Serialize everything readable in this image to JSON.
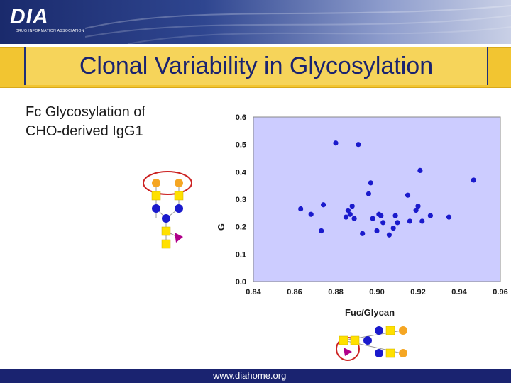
{
  "header": {
    "logo_text": "DIA",
    "logo_subtext": "DRUG INFORMATION ASSOCIATION"
  },
  "title": "Clonal Variability in Glycosylation",
  "subtitle": {
    "line1": "Fc Glycosylation of",
    "line2": "CHO-derived IgG1"
  },
  "footer": {
    "url": "www.diahome.org"
  },
  "colors": {
    "plot_bg": "#ccccff",
    "point": "#1a1acc",
    "title_bg": "#f6d45a",
    "title_text": "#1a2370",
    "galactose": "#f5a623",
    "glcnac": "#ffe000",
    "mannose": "#1a1acc",
    "fucose": "#b0008a",
    "highlight": "#cc2222"
  },
  "chart_data": {
    "type": "scatter",
    "xlabel": "Fuc/Glycan",
    "ylabel": "G",
    "xlim": [
      0.84,
      0.96
    ],
    "ylim": [
      0.0,
      0.6
    ],
    "xticks": [
      "0.84",
      "0.86",
      "0.88",
      "0.90",
      "0.92",
      "0.94",
      "0.96"
    ],
    "yticks": [
      "0.0",
      "0.1",
      "0.2",
      "0.3",
      "0.4",
      "0.5",
      "0.6"
    ],
    "grid": false,
    "points": [
      {
        "x": 0.863,
        "y": 0.265
      },
      {
        "x": 0.868,
        "y": 0.245
      },
      {
        "x": 0.873,
        "y": 0.185
      },
      {
        "x": 0.874,
        "y": 0.28
      },
      {
        "x": 0.88,
        "y": 0.505
      },
      {
        "x": 0.885,
        "y": 0.235
      },
      {
        "x": 0.886,
        "y": 0.26
      },
      {
        "x": 0.887,
        "y": 0.245
      },
      {
        "x": 0.888,
        "y": 0.275
      },
      {
        "x": 0.889,
        "y": 0.23
      },
      {
        "x": 0.891,
        "y": 0.5
      },
      {
        "x": 0.893,
        "y": 0.175
      },
      {
        "x": 0.896,
        "y": 0.32
      },
      {
        "x": 0.897,
        "y": 0.36
      },
      {
        "x": 0.898,
        "y": 0.23
      },
      {
        "x": 0.9,
        "y": 0.185
      },
      {
        "x": 0.901,
        "y": 0.245
      },
      {
        "x": 0.902,
        "y": 0.24
      },
      {
        "x": 0.903,
        "y": 0.215
      },
      {
        "x": 0.906,
        "y": 0.17
      },
      {
        "x": 0.908,
        "y": 0.195
      },
      {
        "x": 0.909,
        "y": 0.24
      },
      {
        "x": 0.91,
        "y": 0.215
      },
      {
        "x": 0.915,
        "y": 0.315
      },
      {
        "x": 0.916,
        "y": 0.22
      },
      {
        "x": 0.919,
        "y": 0.26
      },
      {
        "x": 0.92,
        "y": 0.275
      },
      {
        "x": 0.921,
        "y": 0.405
      },
      {
        "x": 0.922,
        "y": 0.22
      },
      {
        "x": 0.926,
        "y": 0.24
      },
      {
        "x": 0.935,
        "y": 0.235
      },
      {
        "x": 0.947,
        "y": 0.37
      }
    ]
  }
}
